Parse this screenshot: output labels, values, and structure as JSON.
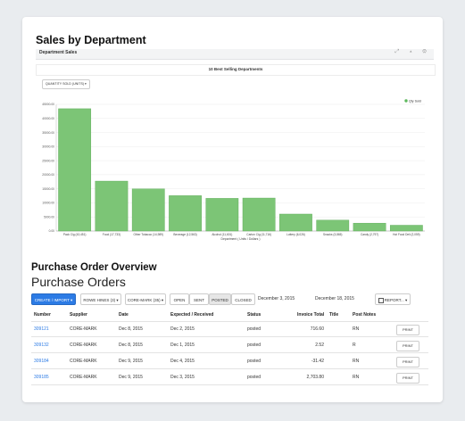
{
  "sales": {
    "heading": "Sales by Department",
    "panel_title": "Department Sales",
    "panel_icons": "⤢ ▴ ⚙",
    "chart_title": "10 Best Selling Departments",
    "quantity_button": "QUANTITY SOLD (UNITS) ▾"
  },
  "chart_data": {
    "type": "bar",
    "title": "10 Best Selling Departments",
    "categories": [
      "Pack Cig (43,451)",
      "Food (17,733)",
      "Other Tobacco (14,989)",
      "Beverage (12,563)",
      "Alcohol (11,601)",
      "Carton Cig (11,716)",
      "Lottery (6,026)",
      "Snacks (3,865)",
      "Candy (2,797)",
      "Hot Food Deli (2,059)"
    ],
    "values": [
      43451,
      17733,
      14989,
      12563,
      11601,
      11716,
      6026,
      3865,
      2797,
      2059
    ],
    "yticks": [
      "45000.00",
      "40000.00",
      "35000.00",
      "30000.00",
      "25000.00",
      "20000.00",
      "15000.00",
      "10000.00",
      "5000.00",
      "0.00"
    ],
    "ylim": [
      0,
      45000
    ],
    "xlabel": "Department ( Units / Dollars )",
    "legend": "Qty Sold",
    "colors": {
      "bar": "#7cc576",
      "bar_stroke": "#5aa955",
      "legend": "#5cb85c"
    }
  },
  "po": {
    "heading": "Purchase Order Overview",
    "subheading": "Purchase Orders",
    "buttons": {
      "create_import": "CREATE / IMPORT ▾",
      "vendors": "ROWE HINES (3) ▾",
      "core_mark": "CORE-MARK (35) ▾",
      "open": "OPEN",
      "sent": "SENT",
      "posted": "POSTED",
      "closed": "CLOSED",
      "report": "REPORT... ▾"
    },
    "date_from": "December 3, 2015",
    "date_to": "December 18, 2015",
    "columns": {
      "number": "Number",
      "supplier": "Supplier",
      "date": "Date",
      "expected": "Expected / Received",
      "status": "Status",
      "total": "Invoice Total",
      "title": "Title",
      "notes": "Post Notes"
    },
    "rows": [
      {
        "number": "309121",
        "supplier": "CORE-MARK",
        "date": "Dec 8, 2015",
        "expected": "Dec 2, 2015",
        "status": "posted",
        "total": "716.60",
        "notes": "RN",
        "print": "PRINT"
      },
      {
        "number": "309132",
        "supplier": "CORE-MARK",
        "date": "Dec 8, 2015",
        "expected": "Dec 1, 2015",
        "status": "posted",
        "total": "2.52",
        "notes": "R",
        "print": "PRINT"
      },
      {
        "number": "309184",
        "supplier": "CORE-MARK",
        "date": "Dec 9, 2015",
        "expected": "Dec 4, 2015",
        "status": "posted",
        "total": "-31.42",
        "notes": "RN",
        "print": "PRINT"
      },
      {
        "number": "309185",
        "supplier": "CORE-MARK",
        "date": "Dec 9, 2015",
        "expected": "Dec 3, 2015",
        "status": "posted",
        "total": "2,703.80",
        "notes": "RN",
        "print": "PRINT"
      }
    ]
  }
}
